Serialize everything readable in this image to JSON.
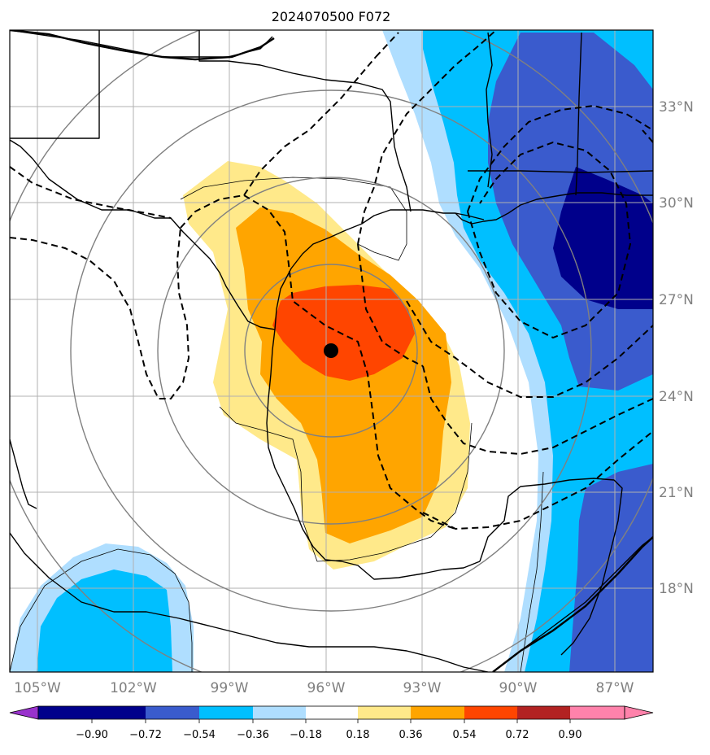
{
  "title": "2024070500 F072",
  "lon_labels": [
    "105°W",
    "102°W",
    "99°W",
    "96°W",
    "93°W",
    "90°W",
    "87°W"
  ],
  "lat_labels": [
    "33°N",
    "30°N",
    "27°N",
    "24°N",
    "21°N",
    "18°N"
  ],
  "colorbar": {
    "tick_labels": [
      "−0.90",
      "−0.72",
      "−0.54",
      "−0.36",
      "−0.18",
      "0.18",
      "0.36",
      "0.54",
      "0.72",
      "0.90"
    ],
    "colors": [
      "#9932cc",
      "#00008b",
      "#3a5bcd",
      "#00bfff",
      "#afdeff",
      "#ffffff",
      "#ffe98a",
      "#ffa500",
      "#ff4500",
      "#b22222",
      "#ff82ab"
    ]
  },
  "storm_center": {
    "lon": -95.8,
    "lat": 25.4
  },
  "colors": {
    "coast": "#000000",
    "contour_dashed": "#000000",
    "range_rings": "#808080",
    "gridlines": "#b0b0b0"
  }
}
